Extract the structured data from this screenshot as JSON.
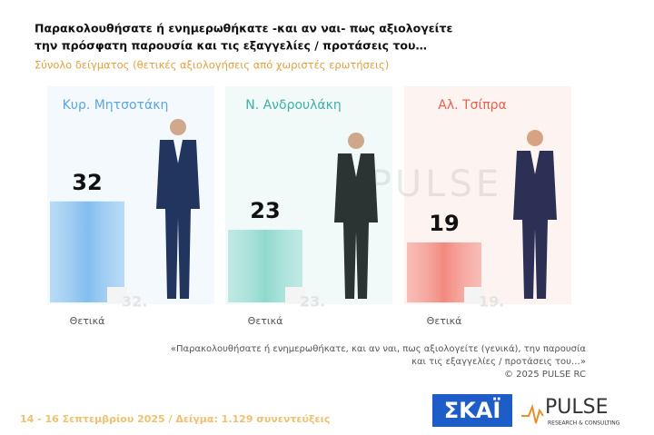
{
  "chart_data": {
    "type": "bar",
    "title": [
      "Παρακολουθήσατε ή ενημερωθήκατε -και αν ναι- πως αξιολογείτε",
      "την πρόσφατη παρουσία και τις εξαγγελίες / προτάσεις του…"
    ],
    "subtitle": "Σύνολο δείγματος  (θετικές αξιολογήσεις από χωριστές ερωτήσεις)",
    "categories": [
      "Κυρ. Μητσοτάκη",
      "Ν. Ανδρουλάκη",
      "Αλ. Τσίπρα"
    ],
    "category_colors": [
      "#5aa6dc",
      "#3fb0a4",
      "#e8604c"
    ],
    "bar_colors": [
      "#82bdee",
      "#8fd9cd",
      "#f28a80"
    ],
    "values": [
      32,
      23,
      19
    ],
    "faint_labels": [
      "32.",
      "23.",
      "19."
    ],
    "series_label": "Θετικά",
    "ylim": [
      0,
      40
    ],
    "watermark": "PULSE",
    "note": [
      "«Παρακολουθήσατε ή ενημερωθήκατε, και αν ναι, πως αξιολογείτε (γενικά), την παρουσία",
      "και τις εξαγγελίες / προτάσεις του…»",
      "©  2025  PULSE RC"
    ],
    "footer": "14 - 16 Σεπτεμβρίου 2025  /  Δείγμα:  1.129 συνεντεύξεις",
    "logos": {
      "skai": "ΣΚΑΪ",
      "pulse": "PULSE",
      "pulse_sub": "RESEARCH & CONSULTING"
    }
  }
}
